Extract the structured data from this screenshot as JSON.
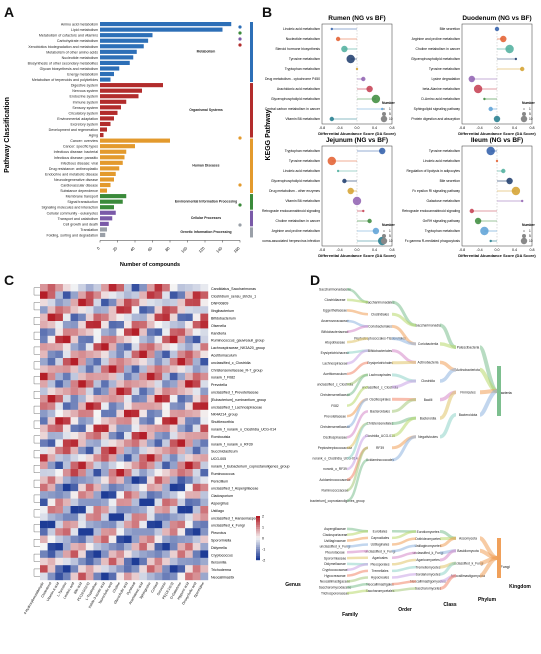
{
  "panels": {
    "a": "A",
    "b": "B",
    "c": "C",
    "d": "D"
  },
  "panel_a": {
    "ylabel": "Pathway Classification",
    "xlabel": "Number of compounds",
    "xticks": [
      "0",
      "20",
      "40",
      "60",
      "80",
      "100",
      "120",
      "140",
      "160"
    ],
    "groups": [
      {
        "name": "Metabolism",
        "color": "#2d6fb7"
      },
      {
        "name": "Organismal Systems",
        "color": "#b22c2c"
      },
      {
        "name": "Human Diseases",
        "color": "#e39a2d"
      },
      {
        "name": "Environmental Information Processing",
        "color": "#3a8a3a"
      },
      {
        "name": "Cellular Processes",
        "color": "#7a5aa8"
      },
      {
        "name": "Genetic Information Processing",
        "color": "#9aa0a8"
      }
    ],
    "items": [
      {
        "label": "Amino acid metabolism",
        "v": 150,
        "g": 0
      },
      {
        "label": "Lipid metabolism",
        "v": 140,
        "g": 0
      },
      {
        "label": "Metabolism of cofactors and vitamins",
        "v": 60,
        "g": 0
      },
      {
        "label": "Carbohydrate metabolism",
        "v": 55,
        "g": 0
      },
      {
        "label": "Xenobiotics biodegradation and metabolism",
        "v": 50,
        "g": 0
      },
      {
        "label": "Metabolism of other amino acids",
        "v": 42,
        "g": 0
      },
      {
        "label": "Nucleotide metabolism",
        "v": 38,
        "g": 0
      },
      {
        "label": "Biosynthesis of other secondary metabolites",
        "v": 34,
        "g": 0
      },
      {
        "label": "Glycan biosynthesis and metabolism",
        "v": 22,
        "g": 0
      },
      {
        "label": "Energy metabolism",
        "v": 16,
        "g": 0
      },
      {
        "label": "Metabolism of terpenoids and polyketides",
        "v": 12,
        "g": 0
      },
      {
        "label": "Digestive system",
        "v": 72,
        "g": 1
      },
      {
        "label": "Nervous system",
        "v": 48,
        "g": 1
      },
      {
        "label": "Endocrine system",
        "v": 44,
        "g": 1
      },
      {
        "label": "Immune system",
        "v": 30,
        "g": 1
      },
      {
        "label": "Sensory system",
        "v": 24,
        "g": 1
      },
      {
        "label": "Circulatory system",
        "v": 20,
        "g": 1
      },
      {
        "label": "Environmental adaptation",
        "v": 16,
        "g": 1
      },
      {
        "label": "Excretory system",
        "v": 12,
        "g": 1
      },
      {
        "label": "Development and regeneration",
        "v": 8,
        "g": 1
      },
      {
        "label": "Aging",
        "v": 4,
        "g": 1
      },
      {
        "label": "Cancer: overview",
        "v": 80,
        "g": 2
      },
      {
        "label": "Cancer: specific types",
        "v": 40,
        "g": 2
      },
      {
        "label": "Infectious disease: bacterial",
        "v": 30,
        "g": 2
      },
      {
        "label": "Infectious disease: parasitic",
        "v": 28,
        "g": 2
      },
      {
        "label": "Infectious disease: viral",
        "v": 26,
        "g": 2
      },
      {
        "label": "Drug resistance: antineoplastic",
        "v": 22,
        "g": 2
      },
      {
        "label": "Endocrine and metabolic disease",
        "v": 18,
        "g": 2
      },
      {
        "label": "Neurodegenerative disease",
        "v": 16,
        "g": 2
      },
      {
        "label": "Cardiovascular disease",
        "v": 12,
        "g": 2
      },
      {
        "label": "Substance dependence",
        "v": 8,
        "g": 2
      },
      {
        "label": "Membrane transport",
        "v": 30,
        "g": 3
      },
      {
        "label": "Signal transduction",
        "v": 26,
        "g": 3
      },
      {
        "label": "Signaling molecules and interaction",
        "v": 16,
        "g": 3
      },
      {
        "label": "Cellular community - eukaryotes",
        "v": 18,
        "g": 4
      },
      {
        "label": "Transport and catabolism",
        "v": 14,
        "g": 4
      },
      {
        "label": "Cell growth and death",
        "v": 10,
        "g": 4
      },
      {
        "label": "Translation",
        "v": 8,
        "g": 5
      },
      {
        "label": "Folding, sorting and degradation",
        "v": 6,
        "g": 5
      }
    ]
  },
  "panel_b": {
    "ylabel": "KEGG Pathway",
    "xlabel": "Differential Abundance Score (DA Score)",
    "legend_title": "Number",
    "legend_values": [
      "1",
      "5",
      "10"
    ],
    "subplots": [
      {
        "title": "Rumen (NG vs BF)",
        "xticks": [
          "-0.8",
          "-0.4",
          "0.0",
          "0.4",
          "0.8"
        ],
        "rows": [
          "Linoleic acid metabolism",
          "Nucleotide metabolism",
          "Steroid hormone biosynthesis",
          "Tyrosine metabolism",
          "Tryptophan metabolism",
          "Drug metabolism - cytochrome P450",
          "Arachidonic acid metabolism",
          "Glycerophospholipid metabolism",
          "Central carbon metabolism in cancer",
          "Vitamin B6 metabolism"
        ]
      },
      {
        "title": "Duodenum (NG vs BF)",
        "xticks": [
          "-0.8",
          "-0.4",
          "0.0",
          "0.4",
          "0.8"
        ],
        "rows": [
          "Bile secretion",
          "Arginine and proline metabolism",
          "Choline metabolism in cancer",
          "Glycerophospholipid metabolism",
          "Tyrosine metabolism",
          "Lysine degradation",
          "beta-Alanine metabolism",
          "D-Amino acid metabolism",
          "Sphingolipid signaling pathway",
          "Protein digestion and absorption"
        ]
      },
      {
        "title": "Jejunum (NG vs BF)",
        "xticks": [
          "-0.8",
          "-0.4",
          "0.0",
          "0.4",
          "0.8"
        ],
        "rows": [
          "Tryptophan metabolism",
          "Tyrosine metabolism",
          "Linoleic acid metabolism",
          "Glycerophospholipid metabolism",
          "Drug metabolism - other enzymes",
          "Vitamin B6 metabolism",
          "Retrograde endocannabinoid signaling",
          "Choline metabolism in cancer",
          "Arginine and proline metabolism",
          "Kaposi sarcoma-associated herpesvirus infection"
        ]
      },
      {
        "title": "Ileum (NG vs BF)",
        "xticks": [
          "-0.8",
          "-0.4",
          "0.0",
          "0.4",
          "0.8"
        ],
        "rows": [
          "Tyrosine metabolism",
          "Linoleic acid metabolism",
          "Regulation of lipolysis in adipocytes",
          "Bile secretion",
          "Fc epsilon RI signaling pathway",
          "Galactose metabolism",
          "Retrograde endocannabinoid signaling",
          "GnRH signaling pathway",
          "Tryptophan metabolism",
          "Fc gamma R-mediated phagocytosis"
        ]
      }
    ]
  },
  "panel_c": {
    "genus_label": "Genus",
    "colorbar_ticks": [
      "2",
      "1",
      "0",
      "-1",
      "-2"
    ],
    "rows": [
      "Candidatus_Saccharimonas",
      "Clostridium_sensu_stricto_1",
      "DNF00809",
      "Ilingibacterium",
      "Bifidobacterium",
      "Olsenella",
      "Kandleria",
      "Ruminococcus_gauvreauii_group",
      "Lachnospiraceae_NK3A20_group",
      "Acetitomaculum",
      "unclassified_c_Clostridia",
      "Christensenellaceae_R-7_group",
      "norank_f_F082",
      "Prevotella",
      "unclassified_f_Prevotellaceae",
      "[Eubacterium]_ruminantium_group",
      "unclassified_f_Lachnospiraceae",
      "NK4A214_group",
      "Shuttleworthia",
      "norank_f_norank_o_Clostridia_UCG-014",
      "Romboutsia",
      "norank_f_norank_o_RF39",
      "Succiniclasticum",
      "UCG-005",
      "norank_f_Eubacterium_coprostanoligenes_group",
      "Ruminococcus",
      "Penicillium",
      "unclassified_f_Aspergillaceae",
      "Cladosporium",
      "Aspergillus",
      "Ustilago",
      "unclassified_f_Hanseniaspora",
      "unclassified_k_Fungi",
      "Pleurotus",
      "Sporormiella",
      "Didymella",
      "Cryptococcus",
      "Itersonilia",
      "Trichoderma",
      "Neocallimastix"
    ],
    "cols": [
      "4-Hydroxybenzaldehyde",
      "Cholesterol",
      "Vitamin A acid",
      "L-Tyrosine",
      "Linoleic acid",
      "Bile acid",
      "PC(18:0/22:6)",
      "L-Tryptophan",
      "Indole-3-acetic acid",
      "Taurocholic acid",
      "Choline",
      "Glycocholic acid",
      "Pyridoxal",
      "Arachidonic acid",
      "Sphingosine",
      "Cortisol",
      "Serotonin",
      "PE(18:1/0:0)",
      "D-Galactose",
      "Hippuric acid",
      "Deoxycholic acid",
      "Spermidine"
    ]
  },
  "panel_d": {
    "family_label": "Family",
    "order_label": "Order",
    "class_label": "Class",
    "phylum_label": "Phylum",
    "kingdom_label": "Kingdom",
    "family_top": [
      "Saccharimonadaceae",
      "Clostridiaceae",
      "Eggerthellaceae",
      "Anaerovoracaceae",
      "Bifidobacteriaceae",
      "Atopobiaceae",
      "Erysipelotrichaceae",
      "Lachnospiraceae",
      "Acetitomaculum",
      "unclassified_c_Clostridia",
      "Christensenellaceae",
      "F082",
      "Prevotellaceae",
      "Christensenellaceae",
      "Oscillospiraceae",
      "Peptostreptococcaceae",
      "norank_o_Clostridia_UCG-014",
      "norank_o_RF39",
      "Acidaminococcaceae",
      "Ruminococcaceae",
      "[Eubacterium]_coprostanoligenes_group"
    ],
    "order_top": [
      "Saccharimonadales",
      "Clostridiales",
      "Coriobacteriales",
      "Peptostreptococcales-Tissierellales",
      "Bifidobacteriales",
      "Erysipelotrichales",
      "Lachnospirales",
      "unclassified_c_Clostridia",
      "Oscillospirales",
      "Bacteroidales",
      "Christensenellales",
      "Clostridia_UCG-014",
      "RF39",
      "Acidaminococcales"
    ],
    "class_top": [
      "Saccharimonadia",
      "Coriobacteriia",
      "Actinobacteria",
      "Clostridia",
      "Bacilli",
      "Bacteroidia",
      "Negativicutes"
    ],
    "phylum_top": [
      "Patescibacteria",
      "Actinobacteriota",
      "Firmicutes",
      "Bacteroidota"
    ],
    "kingdom_top": "Bacteria",
    "family_bottom": [
      "Aspergillaceae",
      "Cladosporiaceae",
      "Ustilaginaceae",
      "unclassified_k_Fungi",
      "Pleurotaceae",
      "Sporormiaceae",
      "Didymellaceae",
      "Cryptococcaceae",
      "Hypocreaceae",
      "Neocallimastigaceae",
      "Saccharomycodaceae",
      "Trichosporonaceae"
    ],
    "order_bottom": [
      "Eurotiales",
      "Capnodiales",
      "Ustilaginales",
      "unclassified_k_Fungi",
      "Agaricales",
      "Pleosporales",
      "Tremellales",
      "Hypocreales",
      "Neocallimastigales",
      "Saccharomycetales"
    ],
    "class_bottom": [
      "Eurotiomycetes",
      "Dothideomycetes",
      "Ustilaginomycetes",
      "unclassified_k_Fungi",
      "Agaricomycetes",
      "Tremellomycetes",
      "Sordariomycetes",
      "Neocallimastigomycetes",
      "Saccharomycetes"
    ],
    "phylum_bottom": [
      "Ascomycota",
      "Basidiomycota",
      "unclassified_k_Fungi",
      "Neocallimastigomycota"
    ],
    "kingdom_bottom": "Fungi"
  }
}
